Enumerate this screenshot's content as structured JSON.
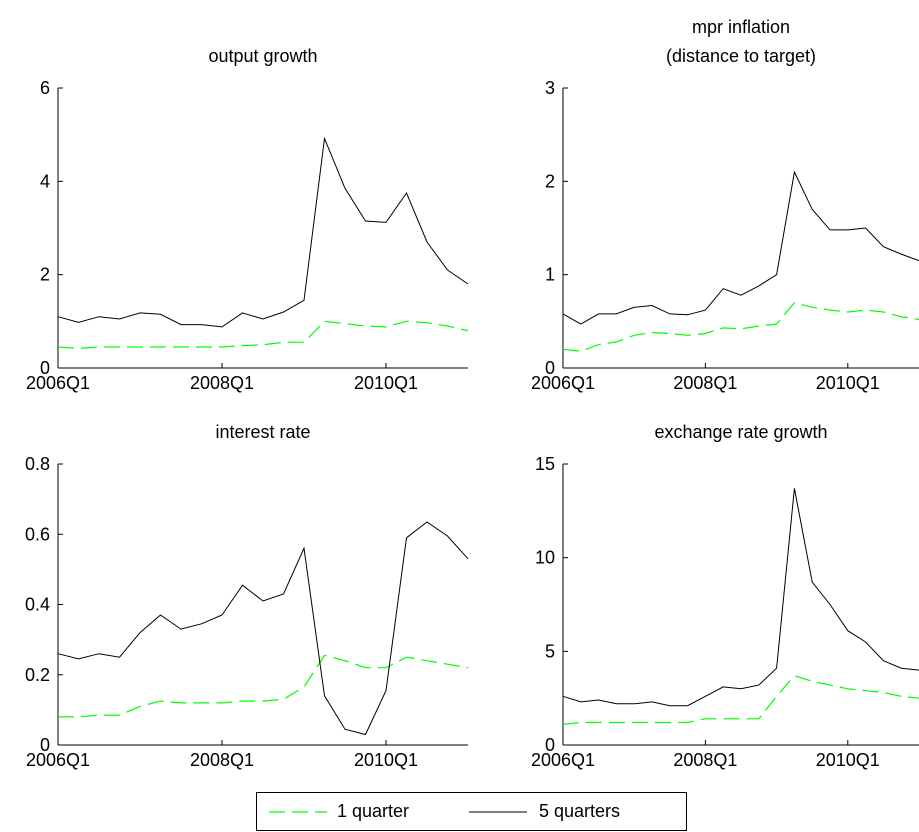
{
  "legend": {
    "items": [
      {
        "label": "1 quarter",
        "color": "#00ff00",
        "style": "dashed"
      },
      {
        "label": "5 quarters",
        "color": "#000000",
        "style": "solid"
      }
    ],
    "placement": "bottom-center"
  },
  "chart_data": [
    {
      "type": "line",
      "title": [
        "output growth"
      ],
      "xlabel": "",
      "ylabel": "",
      "x_tick_labels": [
        "2006Q1",
        "2008Q1",
        "2010Q1"
      ],
      "x_tick_index": [
        0,
        8,
        16
      ],
      "xlim_index": [
        0,
        20
      ],
      "ylim": [
        0,
        6
      ],
      "yticks": [
        0,
        2,
        4,
        6
      ],
      "grid": false,
      "series": [
        {
          "name": "1 quarter",
          "color": "#00ff00",
          "dashed": true,
          "values": [
            0.45,
            0.42,
            0.45,
            0.45,
            0.45,
            0.45,
            0.45,
            0.45,
            0.45,
            0.48,
            0.5,
            0.55,
            0.55,
            1.0,
            0.95,
            0.9,
            0.88,
            1.0,
            0.97,
            0.9,
            0.8
          ]
        },
        {
          "name": "5 quarters",
          "color": "#000000",
          "dashed": false,
          "values": [
            1.1,
            0.98,
            1.1,
            1.05,
            1.18,
            1.15,
            0.93,
            0.93,
            0.88,
            1.18,
            1.05,
            1.2,
            1.45,
            4.92,
            3.85,
            3.15,
            3.12,
            3.75,
            2.7,
            2.1,
            1.8
          ]
        }
      ]
    },
    {
      "type": "line",
      "title": [
        "mpr inflation",
        "(distance to target)"
      ],
      "xlabel": "",
      "ylabel": "",
      "x_tick_labels": [
        "2006Q1",
        "2008Q1",
        "2010Q1"
      ],
      "x_tick_index": [
        0,
        8,
        16
      ],
      "xlim_index": [
        0,
        20
      ],
      "ylim": [
        0,
        3
      ],
      "yticks": [
        0,
        1,
        2,
        3
      ],
      "grid": false,
      "series": [
        {
          "name": "1 quarter",
          "color": "#00ff00",
          "dashed": true,
          "values": [
            0.2,
            0.18,
            0.25,
            0.28,
            0.35,
            0.38,
            0.37,
            0.35,
            0.37,
            0.43,
            0.42,
            0.45,
            0.47,
            0.7,
            0.65,
            0.62,
            0.6,
            0.62,
            0.6,
            0.55,
            0.52
          ]
        },
        {
          "name": "5 quarters",
          "color": "#000000",
          "dashed": false,
          "values": [
            0.58,
            0.47,
            0.58,
            0.58,
            0.65,
            0.67,
            0.58,
            0.57,
            0.62,
            0.85,
            0.78,
            0.88,
            1.0,
            2.1,
            1.7,
            1.48,
            1.48,
            1.5,
            1.3,
            1.22,
            1.15
          ]
        }
      ]
    },
    {
      "type": "line",
      "title": [
        "interest rate"
      ],
      "xlabel": "",
      "ylabel": "",
      "x_tick_labels": [
        "2006Q1",
        "2008Q1",
        "2010Q1"
      ],
      "x_tick_index": [
        0,
        8,
        16
      ],
      "xlim_index": [
        0,
        20
      ],
      "ylim": [
        0,
        0.8
      ],
      "yticks": [
        0,
        0.2,
        0.4,
        0.6,
        0.8
      ],
      "ytick_labels": [
        "0",
        "0.2",
        "0.4",
        "0.6",
        "0.8"
      ],
      "grid": false,
      "series": [
        {
          "name": "1 quarter",
          "color": "#00ff00",
          "dashed": true,
          "values": [
            0.08,
            0.08,
            0.085,
            0.085,
            0.11,
            0.125,
            0.12,
            0.12,
            0.12,
            0.125,
            0.125,
            0.13,
            0.165,
            0.255,
            0.24,
            0.22,
            0.22,
            0.25,
            0.24,
            0.23,
            0.22
          ]
        },
        {
          "name": "5 quarters",
          "color": "#000000",
          "dashed": false,
          "values": [
            0.26,
            0.245,
            0.26,
            0.25,
            0.32,
            0.37,
            0.33,
            0.345,
            0.37,
            0.455,
            0.41,
            0.43,
            0.56,
            0.14,
            0.045,
            0.03,
            0.155,
            0.59,
            0.635,
            0.595,
            0.53
          ]
        }
      ]
    },
    {
      "type": "line",
      "title": [
        "exchange rate growth"
      ],
      "xlabel": "",
      "ylabel": "",
      "x_tick_labels": [
        "2006Q1",
        "2008Q1",
        "2010Q1"
      ],
      "x_tick_index": [
        0,
        8,
        16
      ],
      "xlim_index": [
        0,
        20
      ],
      "ylim": [
        0,
        15
      ],
      "yticks": [
        0,
        5,
        10,
        15
      ],
      "grid": false,
      "series": [
        {
          "name": "1 quarter",
          "color": "#00ff00",
          "dashed": true,
          "values": [
            1.1,
            1.2,
            1.2,
            1.2,
            1.2,
            1.2,
            1.2,
            1.2,
            1.4,
            1.4,
            1.4,
            1.4,
            2.6,
            3.7,
            3.4,
            3.2,
            3.0,
            2.9,
            2.8,
            2.6,
            2.5
          ]
        },
        {
          "name": "5 quarters",
          "color": "#000000",
          "dashed": false,
          "values": [
            2.6,
            2.3,
            2.4,
            2.2,
            2.2,
            2.3,
            2.1,
            2.1,
            2.6,
            3.1,
            3.0,
            3.2,
            4.1,
            13.7,
            8.7,
            7.5,
            6.1,
            5.5,
            4.5,
            4.1,
            4.0
          ]
        }
      ]
    }
  ]
}
